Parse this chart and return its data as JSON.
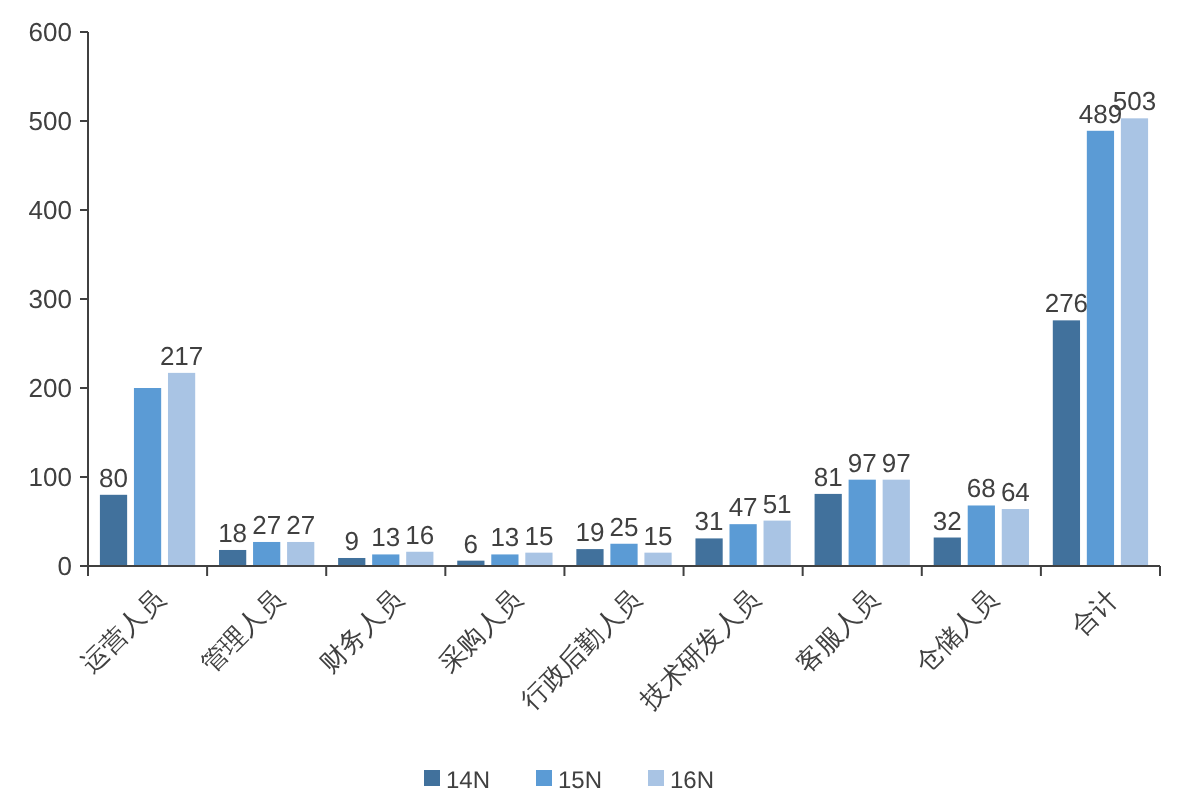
{
  "chart_data": {
    "type": "bar",
    "categories": [
      "运营人员",
      "管理人员",
      "财务人员",
      "采购人员",
      "行政后勤人员",
      "技术研发人员",
      "客服人员",
      "仓储人员",
      "合计"
    ],
    "series": [
      {
        "name": "14N",
        "color": "#41719c",
        "values": [
          80,
          18,
          9,
          6,
          19,
          31,
          81,
          32,
          276
        ],
        "value_labels": [
          "80",
          "18",
          "9",
          "6",
          "19",
          "31",
          "81",
          "32",
          "276"
        ]
      },
      {
        "name": "15N",
        "color": "#5b9bd5",
        "values": [
          200,
          27,
          13,
          13,
          25,
          47,
          97,
          68,
          489
        ],
        "value_labels": [
          null,
          "27",
          "13",
          "13",
          "25",
          "47",
          "97",
          "68",
          "489"
        ]
      },
      {
        "name": "16N",
        "color": "#a9c4e4",
        "values": [
          217,
          27,
          16,
          15,
          15,
          51,
          97,
          64,
          503
        ],
        "value_labels": [
          "217",
          "27",
          "16",
          "15",
          "15",
          "51",
          "97",
          "64",
          "503"
        ]
      }
    ],
    "ylim": [
      0,
      600
    ],
    "yticks": [
      0,
      100,
      200,
      300,
      400,
      500,
      600
    ],
    "grid": false,
    "legend": "bottom"
  }
}
